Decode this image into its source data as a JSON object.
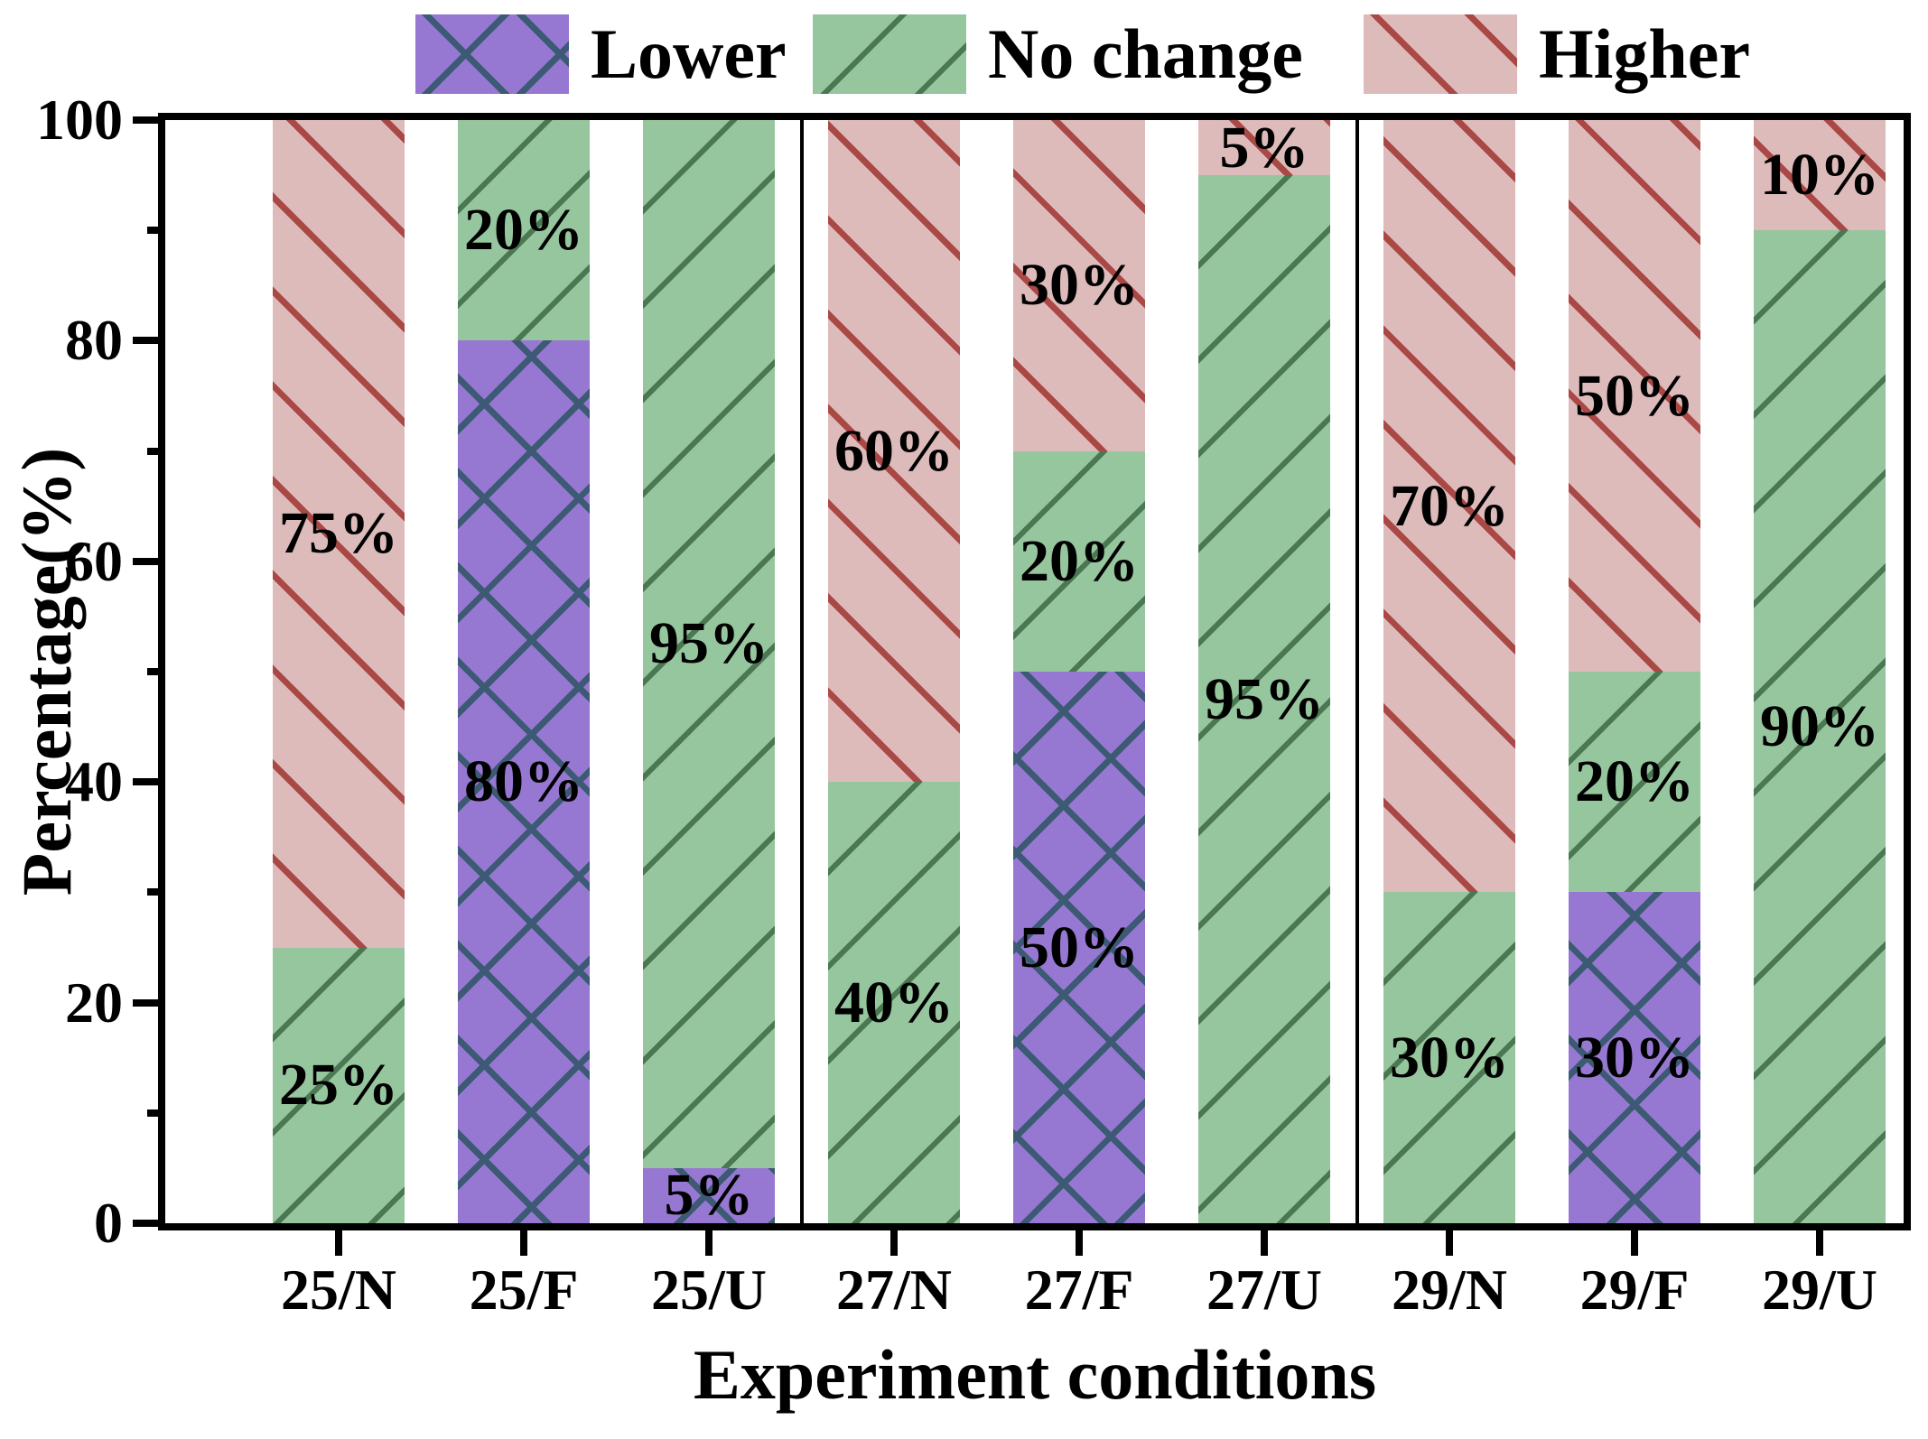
{
  "chart_data": {
    "type": "bar",
    "stacked": true,
    "orientation": "vertical",
    "title": "",
    "xlabel": "Experiment conditions",
    "ylabel": "Percentage(%)",
    "ylim": [
      0,
      100
    ],
    "yticks_major": [
      0,
      20,
      40,
      60,
      80,
      100
    ],
    "yticks_minor": [
      10,
      30,
      50,
      70,
      90
    ],
    "categories": [
      "25/N",
      "25/F",
      "25/U",
      "27/N",
      "27/F",
      "27/U",
      "29/N",
      "29/F",
      "29/U"
    ],
    "series": [
      {
        "name": "Lower",
        "fill": "#9678d2",
        "hatch_color": "#3c5a73",
        "hatch": "xx",
        "values": [
          0,
          80,
          5,
          0,
          50,
          0,
          0,
          30,
          0
        ]
      },
      {
        "name": "No change",
        "fill": "#96c69e",
        "hatch_color": "#4b7852",
        "hatch": "//",
        "values": [
          25,
          20,
          95,
          40,
          20,
          95,
          30,
          20,
          90
        ]
      },
      {
        "name": "Higher",
        "fill": "#debbbb",
        "hatch_color": "#aa4846",
        "hatch": "\\\\",
        "values": [
          75,
          0,
          0,
          60,
          30,
          5,
          70,
          50,
          10
        ]
      }
    ],
    "segment_labels": [
      [
        "",
        "80%",
        "5%",
        "",
        "50%",
        "",
        "",
        "30%",
        ""
      ],
      [
        "25%",
        "20%",
        "95%",
        "40%",
        "20%",
        "95%",
        "30%",
        "20%",
        "90%"
      ],
      [
        "75%",
        "",
        "",
        "60%",
        "30%",
        "5%",
        "70%",
        "50%",
        "10%"
      ]
    ],
    "group_dividers_between_categories": [
      [
        2,
        3
      ],
      [
        5,
        6
      ]
    ],
    "legend_position": "top",
    "grid": false,
    "axis_color": "#000000",
    "text_color": "#000000",
    "background": "#ffffff"
  }
}
